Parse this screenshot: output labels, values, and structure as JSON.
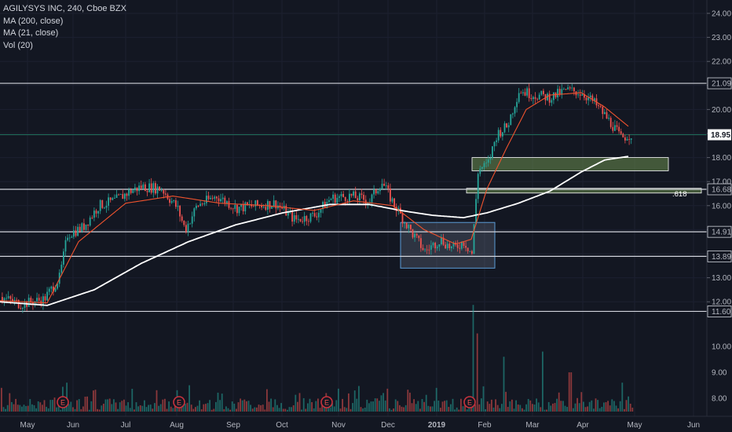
{
  "legend": {
    "symbol_line": "AGILYSYS INC, 240, Cboe BZX",
    "ma200": "MA (200, close)",
    "ma21": "MA (21, close)",
    "vol": "Vol (20)"
  },
  "colors": {
    "background": "#131722",
    "up": "#26a69a",
    "down": "#ef5350",
    "ma200": "#ffffff",
    "ma21": "#f0532e",
    "level_line": "#d1d4dc",
    "current_line": "#1f6e5a",
    "zone_green": "#6b8e4e",
    "zone_box": "#5b9bd5"
  },
  "chart_data": {
    "type": "candlestick",
    "price_axis": {
      "ticks": [
        12.0,
        13.0,
        14.0,
        15.0,
        16.0,
        17.0,
        18.0,
        19.0,
        20.0,
        21.0,
        22.0,
        23.0,
        24.0
      ],
      "ylim": [
        11.2,
        24.4
      ]
    },
    "volume_axis": {
      "ticks": [
        8.0,
        9.0,
        10.0
      ],
      "unit": "K"
    },
    "time_axis": [
      "May",
      "Jun",
      "Jul",
      "Aug",
      "Sep",
      "Oct",
      "Nov",
      "Dec",
      "2019",
      "Feb",
      "Mar",
      "Apr",
      "May",
      "Jun"
    ],
    "horizontal_levels": [
      {
        "value": 21.09,
        "label": "21.09"
      },
      {
        "value": 16.68,
        "label": "16.68"
      },
      {
        "value": 14.91,
        "label": "14.91"
      },
      {
        "value": 13.89,
        "label": "13.89"
      },
      {
        "value": 11.6,
        "label": "11.60"
      }
    ],
    "current_price": {
      "value": 18.95,
      "label": "18.95"
    },
    "fib_label": ".618",
    "zones": [
      {
        "type": "supply-demand",
        "price_top": 18.0,
        "price_bottom": 17.45,
        "start": "Jan 24",
        "end": "Apr 30"
      },
      {
        "type": "fib-band",
        "price_top": 16.72,
        "price_bottom": 16.55,
        "start": "Jan 20",
        "end": "Jun 5"
      },
      {
        "type": "consolidation-box",
        "price_top": 15.3,
        "price_bottom": 13.4,
        "start": "Dec 5",
        "end": "Jan 26"
      }
    ],
    "earnings_markers": [
      "Jun",
      "Aug",
      "Nov",
      "Jan"
    ],
    "earnings_marker_label": "E",
    "price_path": [
      [
        0,
        12.2
      ],
      [
        25,
        11.9
      ],
      [
        55,
        12.1
      ],
      [
        75,
        13.0
      ],
      [
        85,
        14.8
      ],
      [
        105,
        15.1
      ],
      [
        125,
        16.0
      ],
      [
        145,
        16.2
      ],
      [
        165,
        16.6
      ],
      [
        180,
        16.8
      ],
      [
        205,
        16.7
      ],
      [
        225,
        15.9
      ],
      [
        235,
        15.0
      ],
      [
        250,
        16.0
      ],
      [
        275,
        16.4
      ],
      [
        300,
        15.9
      ],
      [
        325,
        16.0
      ],
      [
        350,
        16.1
      ],
      [
        375,
        15.4
      ],
      [
        400,
        15.6
      ],
      [
        420,
        16.3
      ],
      [
        445,
        16.4
      ],
      [
        470,
        16.2
      ],
      [
        485,
        17.0
      ],
      [
        500,
        16.1
      ],
      [
        515,
        15.3
      ],
      [
        525,
        14.8
      ],
      [
        540,
        14.1
      ],
      [
        560,
        14.6
      ],
      [
        575,
        14.2
      ],
      [
        590,
        14.5
      ],
      [
        600,
        14.0
      ],
      [
        608,
        17.5
      ],
      [
        620,
        17.7
      ],
      [
        632,
        19.0
      ],
      [
        645,
        19.3
      ],
      [
        660,
        20.8
      ],
      [
        680,
        20.6
      ],
      [
        700,
        20.5
      ],
      [
        720,
        20.8
      ],
      [
        740,
        20.7
      ],
      [
        755,
        20.3
      ],
      [
        768,
        19.8
      ],
      [
        780,
        19.3
      ],
      [
        790,
        18.8
      ],
      [
        800,
        18.95
      ]
    ],
    "ma200_path": [
      [
        0,
        12.0
      ],
      [
        60,
        11.85
      ],
      [
        120,
        12.5
      ],
      [
        180,
        13.6
      ],
      [
        240,
        14.5
      ],
      [
        300,
        15.2
      ],
      [
        360,
        15.7
      ],
      [
        420,
        16.05
      ],
      [
        470,
        16.05
      ],
      [
        510,
        15.8
      ],
      [
        550,
        15.6
      ],
      [
        590,
        15.5
      ],
      [
        620,
        15.7
      ],
      [
        660,
        16.1
      ],
      [
        700,
        16.6
      ],
      [
        740,
        17.4
      ],
      [
        770,
        17.9
      ],
      [
        800,
        18.05
      ]
    ],
    "ma21_path": [
      [
        0,
        12.05
      ],
      [
        60,
        11.95
      ],
      [
        100,
        14.5
      ],
      [
        160,
        16.1
      ],
      [
        220,
        16.4
      ],
      [
        280,
        16.1
      ],
      [
        340,
        16.0
      ],
      [
        400,
        15.8
      ],
      [
        450,
        16.2
      ],
      [
        500,
        16.0
      ],
      [
        540,
        15.0
      ],
      [
        580,
        14.4
      ],
      [
        600,
        14.6
      ],
      [
        620,
        16.7
      ],
      [
        645,
        18.4
      ],
      [
        670,
        20.0
      ],
      [
        700,
        20.6
      ],
      [
        740,
        20.7
      ],
      [
        770,
        20.1
      ],
      [
        800,
        19.3
      ]
    ],
    "volume_spikes": [
      [
        602,
        11.6
      ],
      [
        607,
        10.5
      ],
      [
        641,
        9.6
      ],
      [
        691,
        9.8
      ],
      [
        792,
        8.6
      ],
      [
        0,
        8.4
      ],
      [
        85,
        8.6
      ],
      [
        118,
        8.3
      ],
      [
        240,
        8.5
      ],
      [
        380,
        8.2
      ],
      [
        450,
        8.3
      ],
      [
        555,
        8.4
      ],
      [
        725,
        9.0
      ]
    ]
  }
}
